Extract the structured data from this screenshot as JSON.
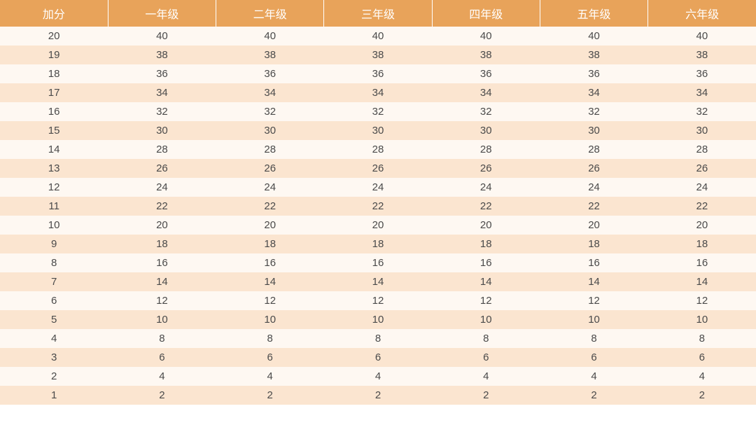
{
  "table": {
    "type": "table",
    "header_bg": "#e8a35a",
    "header_text_color": "#ffffff",
    "row_odd_bg": "#fef8f2",
    "row_even_bg": "#fbe5d0",
    "cell_text_color": "#4a4a4a",
    "header_fontsize": 16,
    "cell_fontsize": 15,
    "columns": [
      "加分",
      "一年级",
      "二年级",
      "三年级",
      "四年级",
      "五年级",
      "六年级"
    ],
    "rows": [
      [
        20,
        40,
        40,
        40,
        40,
        40,
        40
      ],
      [
        19,
        38,
        38,
        38,
        38,
        38,
        38
      ],
      [
        18,
        36,
        36,
        36,
        36,
        36,
        36
      ],
      [
        17,
        34,
        34,
        34,
        34,
        34,
        34
      ],
      [
        16,
        32,
        32,
        32,
        32,
        32,
        32
      ],
      [
        15,
        30,
        30,
        30,
        30,
        30,
        30
      ],
      [
        14,
        28,
        28,
        28,
        28,
        28,
        28
      ],
      [
        13,
        26,
        26,
        26,
        26,
        26,
        26
      ],
      [
        12,
        24,
        24,
        24,
        24,
        24,
        24
      ],
      [
        11,
        22,
        22,
        22,
        22,
        22,
        22
      ],
      [
        10,
        20,
        20,
        20,
        20,
        20,
        20
      ],
      [
        9,
        18,
        18,
        18,
        18,
        18,
        18
      ],
      [
        8,
        16,
        16,
        16,
        16,
        16,
        16
      ],
      [
        7,
        14,
        14,
        14,
        14,
        14,
        14
      ],
      [
        6,
        12,
        12,
        12,
        12,
        12,
        12
      ],
      [
        5,
        10,
        10,
        10,
        10,
        10,
        10
      ],
      [
        4,
        8,
        8,
        8,
        8,
        8,
        8
      ],
      [
        3,
        6,
        6,
        6,
        6,
        6,
        6
      ],
      [
        2,
        4,
        4,
        4,
        4,
        4,
        4
      ],
      [
        1,
        2,
        2,
        2,
        2,
        2,
        2
      ]
    ]
  }
}
